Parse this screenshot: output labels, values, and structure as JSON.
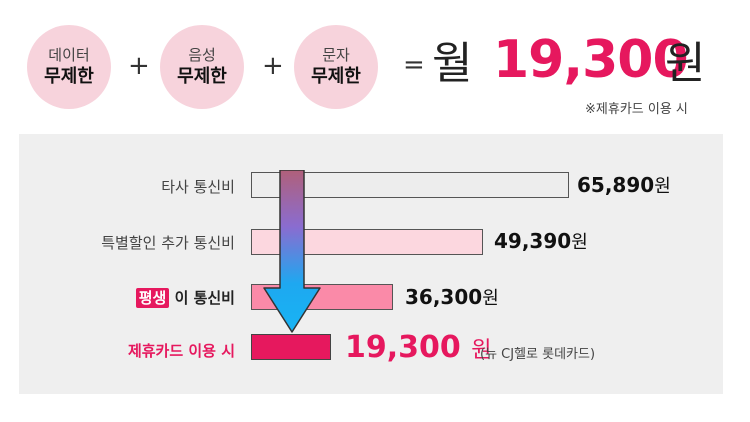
{
  "plans": [
    {
      "top": "데이터",
      "bottom": "무제한"
    },
    {
      "top": "음성",
      "bottom": "무제한"
    },
    {
      "top": "문자",
      "bottom": "무제한"
    }
  ],
  "operators": {
    "plus": "+",
    "equals": "="
  },
  "headline": {
    "month": "월",
    "price": "19,300",
    "unit": "원",
    "note": "※제휴카드 이용 시"
  },
  "colors": {
    "accent": "#e6185e",
    "circle_bg": "#f7d3dc",
    "panel_bg": "#efefef"
  },
  "comparison": {
    "rows": [
      {
        "label": "타사 통신비",
        "value": "65,890",
        "unit": "원"
      },
      {
        "label": "특별할인 추가 통신비",
        "value": "49,390",
        "unit": "원"
      },
      {
        "label_highlight": "평생",
        "label_rest": "이 통신비",
        "value": "36,300",
        "unit": "원"
      },
      {
        "label": "제휴카드 이용 시",
        "value": "19,300",
        "unit": "원",
        "note": "(뉴 CJ헬로 롯데카드)"
      }
    ]
  }
}
